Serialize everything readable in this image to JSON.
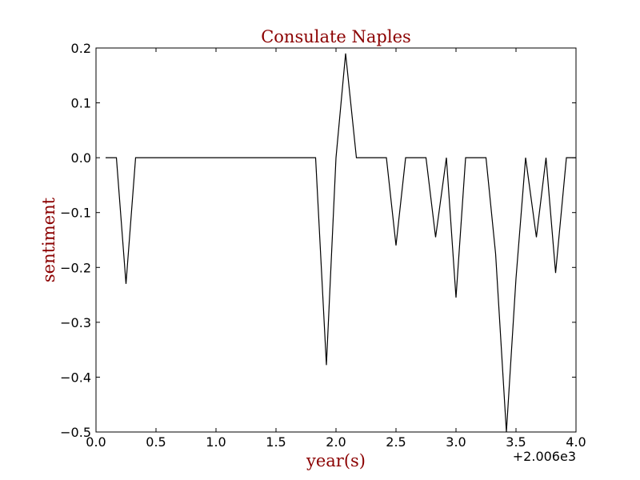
{
  "chart_data": {
    "type": "line",
    "title": "Consulate Naples",
    "xlabel": "year(s)",
    "ylabel": "sentiment",
    "x_offset_label": "+2.006e3",
    "xlim": [
      0.0,
      4.0
    ],
    "ylim": [
      -0.5,
      0.2
    ],
    "x_ticks": [
      0.0,
      0.5,
      1.0,
      1.5,
      2.0,
      2.5,
      3.0,
      3.5,
      4.0
    ],
    "x_tick_labels": [
      "0.0",
      "0.5",
      "1.0",
      "1.5",
      "2.0",
      "2.5",
      "3.0",
      "3.5",
      "4.0"
    ],
    "y_ticks": [
      -0.5,
      -0.4,
      -0.3,
      -0.2,
      -0.1,
      0.0,
      0.1,
      0.2
    ],
    "y_tick_labels": [
      "−0.5",
      "−0.4",
      "−0.3",
      "−0.2",
      "−0.1",
      "0.0",
      "0.1",
      "0.2"
    ],
    "grid": false,
    "colors": {
      "line": "#000000",
      "title": "#8b0000",
      "axis_label": "#8b0000"
    },
    "series": [
      {
        "x": [
          0.08,
          0.17,
          0.25,
          0.33,
          0.42,
          0.5,
          0.58,
          0.67,
          0.75,
          0.83,
          0.92,
          1.0,
          1.08,
          1.17,
          1.25,
          1.33,
          1.42,
          1.5,
          1.58,
          1.67,
          1.75,
          1.83,
          1.92,
          2.0,
          2.08,
          2.17,
          2.25,
          2.33,
          2.42,
          2.5,
          2.58,
          2.67,
          2.75,
          2.83,
          2.92,
          3.0,
          3.08,
          3.17,
          3.25,
          3.33,
          3.42,
          3.5,
          3.58,
          3.67,
          3.75,
          3.83,
          3.92,
          4.0
        ],
        "y": [
          0.0,
          0.0,
          -0.23,
          0.0,
          0.0,
          0.0,
          0.0,
          0.0,
          0.0,
          0.0,
          0.0,
          0.0,
          0.0,
          0.0,
          0.0,
          0.0,
          0.0,
          0.0,
          0.0,
          0.0,
          0.0,
          0.0,
          -0.378,
          0.0,
          0.19,
          0.0,
          0.0,
          0.0,
          0.0,
          -0.16,
          0.0,
          0.0,
          0.0,
          -0.145,
          0.0,
          -0.255,
          0.0,
          0.0,
          0.0,
          -0.175,
          -0.5,
          -0.22,
          0.0,
          -0.145,
          0.0,
          -0.21,
          0.0,
          0.0
        ]
      }
    ]
  }
}
